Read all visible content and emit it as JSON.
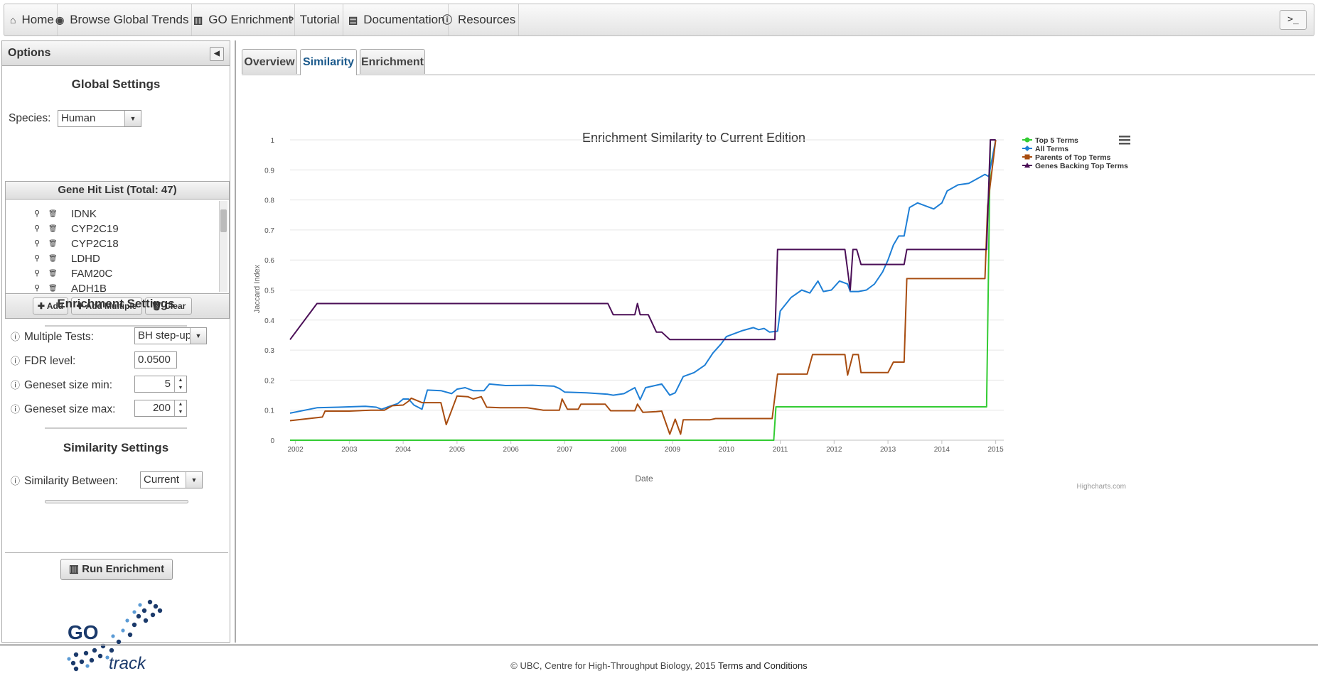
{
  "nav": {
    "items": [
      {
        "label": "Home",
        "icon": "home-icon"
      },
      {
        "label": "Browse Global Trends",
        "icon": "globe-icon"
      },
      {
        "label": "GO Enrichment",
        "icon": "bar-chart-icon"
      },
      {
        "label": "Tutorial",
        "icon": "question-icon"
      },
      {
        "label": "Documentation",
        "icon": "book-icon"
      },
      {
        "label": "Resources",
        "icon": "info-icon"
      }
    ],
    "console_glyph": ">_"
  },
  "options": {
    "title": "Options",
    "global_title": "Global Settings",
    "species_label": "Species:",
    "species_value": "Human",
    "genelist_title": "Gene Hit List (Total: 47)",
    "genes": [
      "IDNK",
      "CYP2C19",
      "CYP2C18",
      "LDHD",
      "FAM20C",
      "ADH1B"
    ],
    "add_label": "Add",
    "add_multiple_label": "Add Multiple",
    "clear_label": "Clear",
    "enrichment_title": "Enrichment Settings",
    "multiple_tests_label": "Multiple Tests:",
    "multiple_tests_value": "BH step-up",
    "fdr_label": "FDR level:",
    "fdr_value": "0.0500",
    "min_label": "Geneset size min:",
    "min_value": "5",
    "max_label": "Geneset size max:",
    "max_value": "200",
    "similarity_title": "Similarity Settings",
    "similarity_label": "Similarity Between:",
    "similarity_value": "Current",
    "run_label": "Run Enrichment",
    "logo_text_go": "GO",
    "logo_text_track": "track"
  },
  "tabs": [
    {
      "label": "Overview",
      "active": false
    },
    {
      "label": "Similarity",
      "active": true
    },
    {
      "label": "Enrichment",
      "active": false
    }
  ],
  "chart_data": {
    "type": "line",
    "title": "Enrichment Similarity to Current Edition",
    "xlabel": "Date",
    "ylabel": "Jaccard Index",
    "ylim": [
      0,
      1
    ],
    "x_ticks": [
      "2002",
      "2003",
      "2004",
      "2005",
      "2006",
      "2007",
      "2008",
      "2009",
      "2010",
      "2011",
      "2012",
      "2013",
      "2014",
      "2015"
    ],
    "y_ticks": [
      "0",
      "0.1",
      "0.2",
      "0.3",
      "0.4",
      "0.5",
      "0.6",
      "0.7",
      "0.8",
      "0.9",
      "1"
    ],
    "legend_position": "top-right",
    "credits": "Highcharts.com",
    "series": [
      {
        "name": "Top 5 Terms",
        "color": "#33cc33",
        "marker": "circle",
        "points": [
          [
            2001.9,
            0
          ],
          [
            2010.88,
            0
          ],
          [
            2010.92,
            0.111
          ],
          [
            2014.83,
            0.111
          ],
          [
            2014.9,
            1
          ],
          [
            2015.0,
            1
          ]
        ]
      },
      {
        "name": "All Terms",
        "color": "#1e7fd6",
        "marker": "diamond",
        "points": [
          [
            2001.9,
            0.09
          ],
          [
            2002.4,
            0.108
          ],
          [
            2002.8,
            0.11
          ],
          [
            2003.3,
            0.113
          ],
          [
            2003.5,
            0.11
          ],
          [
            2003.6,
            0.103
          ],
          [
            2003.75,
            0.113
          ],
          [
            2003.9,
            0.122
          ],
          [
            2004.0,
            0.137
          ],
          [
            2004.1,
            0.137
          ],
          [
            2004.2,
            0.117
          ],
          [
            2004.35,
            0.103
          ],
          [
            2004.45,
            0.167
          ],
          [
            2004.7,
            0.165
          ],
          [
            2004.9,
            0.155
          ],
          [
            2005.0,
            0.17
          ],
          [
            2005.15,
            0.175
          ],
          [
            2005.3,
            0.165
          ],
          [
            2005.5,
            0.165
          ],
          [
            2005.6,
            0.187
          ],
          [
            2005.9,
            0.182
          ],
          [
            2006.4,
            0.183
          ],
          [
            2006.8,
            0.18
          ],
          [
            2006.9,
            0.172
          ],
          [
            2007.0,
            0.16
          ],
          [
            2007.4,
            0.158
          ],
          [
            2007.8,
            0.153
          ],
          [
            2007.9,
            0.15
          ],
          [
            2008.1,
            0.155
          ],
          [
            2008.3,
            0.175
          ],
          [
            2008.4,
            0.135
          ],
          [
            2008.5,
            0.175
          ],
          [
            2008.8,
            0.187
          ],
          [
            2008.95,
            0.15
          ],
          [
            2009.05,
            0.158
          ],
          [
            2009.2,
            0.212
          ],
          [
            2009.4,
            0.225
          ],
          [
            2009.6,
            0.25
          ],
          [
            2009.75,
            0.29
          ],
          [
            2009.9,
            0.32
          ],
          [
            2010.0,
            0.345
          ],
          [
            2010.3,
            0.365
          ],
          [
            2010.5,
            0.375
          ],
          [
            2010.6,
            0.368
          ],
          [
            2010.7,
            0.372
          ],
          [
            2010.8,
            0.36
          ],
          [
            2010.95,
            0.363
          ],
          [
            2011.0,
            0.43
          ],
          [
            2011.2,
            0.475
          ],
          [
            2011.4,
            0.5
          ],
          [
            2011.55,
            0.49
          ],
          [
            2011.7,
            0.53
          ],
          [
            2011.8,
            0.495
          ],
          [
            2011.95,
            0.5
          ],
          [
            2012.1,
            0.53
          ],
          [
            2012.25,
            0.52
          ],
          [
            2012.3,
            0.495
          ],
          [
            2012.45,
            0.495
          ],
          [
            2012.6,
            0.5
          ],
          [
            2012.75,
            0.52
          ],
          [
            2012.9,
            0.56
          ],
          [
            2013.0,
            0.6
          ],
          [
            2013.1,
            0.65
          ],
          [
            2013.2,
            0.68
          ],
          [
            2013.3,
            0.68
          ],
          [
            2013.4,
            0.775
          ],
          [
            2013.55,
            0.79
          ],
          [
            2013.7,
            0.78
          ],
          [
            2013.85,
            0.77
          ],
          [
            2014.0,
            0.79
          ],
          [
            2014.1,
            0.83
          ],
          [
            2014.3,
            0.85
          ],
          [
            2014.5,
            0.855
          ],
          [
            2014.65,
            0.87
          ],
          [
            2014.8,
            0.885
          ],
          [
            2014.87,
            0.878
          ],
          [
            2015.0,
            1
          ]
        ]
      },
      {
        "name": "Parents of Top Terms",
        "color": "#a84d11",
        "marker": "square",
        "points": [
          [
            2001.9,
            0.065
          ],
          [
            2002.5,
            0.077
          ],
          [
            2002.55,
            0.097
          ],
          [
            2003.0,
            0.097
          ],
          [
            2003.4,
            0.1
          ],
          [
            2003.65,
            0.1
          ],
          [
            2003.8,
            0.115
          ],
          [
            2004.0,
            0.117
          ],
          [
            2004.1,
            0.13
          ],
          [
            2004.15,
            0.14
          ],
          [
            2004.35,
            0.125
          ],
          [
            2004.7,
            0.125
          ],
          [
            2004.8,
            0.052
          ],
          [
            2005.0,
            0.147
          ],
          [
            2005.2,
            0.145
          ],
          [
            2005.3,
            0.137
          ],
          [
            2005.45,
            0.145
          ],
          [
            2005.55,
            0.11
          ],
          [
            2005.8,
            0.108
          ],
          [
            2006.3,
            0.108
          ],
          [
            2006.6,
            0.1
          ],
          [
            2006.9,
            0.1
          ],
          [
            2006.95,
            0.137
          ],
          [
            2007.05,
            0.103
          ],
          [
            2007.25,
            0.103
          ],
          [
            2007.3,
            0.12
          ],
          [
            2007.75,
            0.12
          ],
          [
            2007.85,
            0.098
          ],
          [
            2008.3,
            0.098
          ],
          [
            2008.35,
            0.12
          ],
          [
            2008.45,
            0.093
          ],
          [
            2008.7,
            0.095
          ],
          [
            2008.8,
            0.097
          ],
          [
            2008.95,
            0.02
          ],
          [
            2009.05,
            0.07
          ],
          [
            2009.15,
            0.02
          ],
          [
            2009.2,
            0.068
          ],
          [
            2009.7,
            0.068
          ],
          [
            2009.8,
            0.072
          ],
          [
            2010.85,
            0.072
          ],
          [
            2010.95,
            0.22
          ],
          [
            2011.5,
            0.22
          ],
          [
            2011.6,
            0.285
          ],
          [
            2012.2,
            0.285
          ],
          [
            2012.25,
            0.217
          ],
          [
            2012.35,
            0.285
          ],
          [
            2012.45,
            0.285
          ],
          [
            2012.5,
            0.225
          ],
          [
            2013.0,
            0.225
          ],
          [
            2013.1,
            0.26
          ],
          [
            2013.3,
            0.26
          ],
          [
            2013.35,
            0.538
          ],
          [
            2014.8,
            0.538
          ],
          [
            2014.85,
            0.78
          ],
          [
            2015.0,
            1
          ]
        ]
      },
      {
        "name": "Genes Backing Top Terms",
        "color": "#4b0f57",
        "marker": "triangle",
        "points": [
          [
            2001.9,
            0.335
          ],
          [
            2002.4,
            0.455
          ],
          [
            2007.8,
            0.455
          ],
          [
            2007.9,
            0.418
          ],
          [
            2008.3,
            0.418
          ],
          [
            2008.35,
            0.455
          ],
          [
            2008.4,
            0.418
          ],
          [
            2008.55,
            0.418
          ],
          [
            2008.7,
            0.36
          ],
          [
            2008.8,
            0.36
          ],
          [
            2008.95,
            0.335
          ],
          [
            2010.9,
            0.335
          ],
          [
            2010.95,
            0.635
          ],
          [
            2012.2,
            0.635
          ],
          [
            2012.3,
            0.5
          ],
          [
            2012.35,
            0.635
          ],
          [
            2012.42,
            0.635
          ],
          [
            2012.5,
            0.585
          ],
          [
            2013.3,
            0.585
          ],
          [
            2013.35,
            0.635
          ],
          [
            2014.83,
            0.635
          ],
          [
            2014.9,
            1
          ],
          [
            2015.0,
            1
          ]
        ]
      }
    ]
  },
  "footer": {
    "copyright": "© UBC, Centre for High-Throughput Biology, 2015",
    "terms": "Terms and Conditions"
  }
}
